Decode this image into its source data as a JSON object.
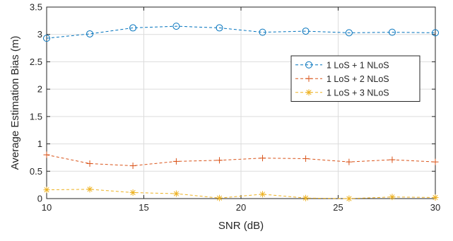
{
  "chart_data": {
    "type": "line",
    "title": "",
    "xlabel": "SNR (dB)",
    "ylabel": "Average Estimation Bias (m)",
    "xlim": [
      10,
      30
    ],
    "ylim": [
      0,
      3.5
    ],
    "xticks": [
      10,
      15,
      20,
      25,
      30
    ],
    "yticks": [
      0,
      0.5,
      1,
      1.5,
      2,
      2.5,
      3,
      3.5
    ],
    "xtick_labels": [
      "10",
      "15",
      "20",
      "25",
      "30"
    ],
    "ytick_labels": [
      "0",
      "0.5",
      "1",
      "1.5",
      "2",
      "2.5",
      "3",
      "3.5"
    ],
    "grid": true,
    "legend_position": "right",
    "x": [
      10,
      12.22,
      14.44,
      16.67,
      18.89,
      21.11,
      23.33,
      25.56,
      27.78,
      30
    ],
    "series": [
      {
        "name": "1 LoS + 1 NLoS",
        "color": "#0072bd",
        "marker": "circle",
        "values": [
          2.93,
          3.01,
          3.12,
          3.15,
          3.12,
          3.04,
          3.06,
          3.03,
          3.04,
          3.03
        ]
      },
      {
        "name": "1 LoS + 2 NLoS",
        "color": "#d95319",
        "marker": "plus",
        "values": [
          0.8,
          0.64,
          0.6,
          0.68,
          0.7,
          0.74,
          0.73,
          0.67,
          0.71,
          0.67
        ]
      },
      {
        "name": "1 LoS + 3 NLoS",
        "color": "#edb120",
        "marker": "asterisk",
        "values": [
          0.16,
          0.17,
          0.11,
          0.09,
          0.01,
          0.08,
          0.01,
          0.0,
          0.03,
          0.02
        ]
      }
    ]
  }
}
